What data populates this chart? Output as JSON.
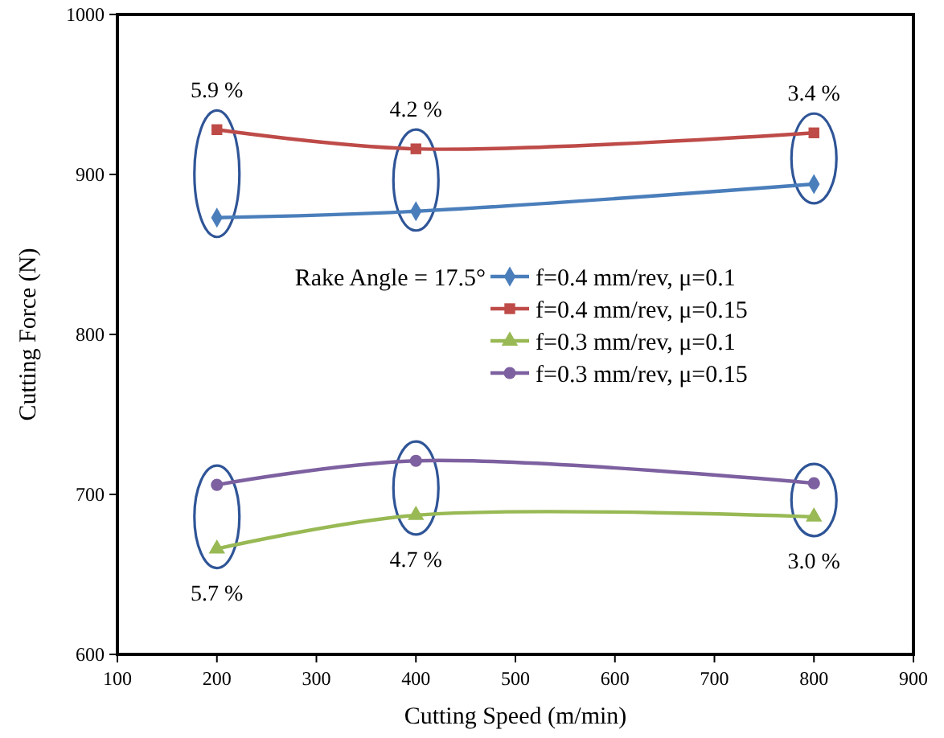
{
  "chart_data": {
    "type": "line",
    "xlabel": "Cutting Speed (m/min)",
    "ylabel": "Cutting Force (N)",
    "x": [
      200,
      400,
      800
    ],
    "series": [
      {
        "name": "f=0.4 mm/rev, μ=0.1",
        "color": "#4a7ebb",
        "marker": "diamond",
        "values": [
          873,
          877,
          894
        ]
      },
      {
        "name": "f=0.4 mm/rev, μ=0.15",
        "color": "#be4b48",
        "marker": "square",
        "values": [
          928,
          916,
          926
        ]
      },
      {
        "name": "f=0.3 mm/rev, μ=0.1",
        "color": "#98b954",
        "marker": "triangle",
        "values": [
          666,
          687,
          686
        ]
      },
      {
        "name": "f=0.3 mm/rev, μ=0.15",
        "color": "#7d60a0",
        "marker": "circle",
        "values": [
          706,
          721,
          707
        ]
      }
    ],
    "xlim": [
      100,
      900
    ],
    "xticks": [
      100,
      200,
      300,
      400,
      500,
      600,
      700,
      800,
      900
    ],
    "ylim": [
      600,
      1000
    ],
    "yticks": [
      600,
      700,
      800,
      900,
      1000
    ],
    "grid": false,
    "legend": "right",
    "annotations": [
      "Rake Angle = 17.5°",
      "5.9 %",
      "4.2 %",
      "3.4 %",
      "5.7 %",
      "4.7 %",
      "3.0 %"
    ]
  }
}
